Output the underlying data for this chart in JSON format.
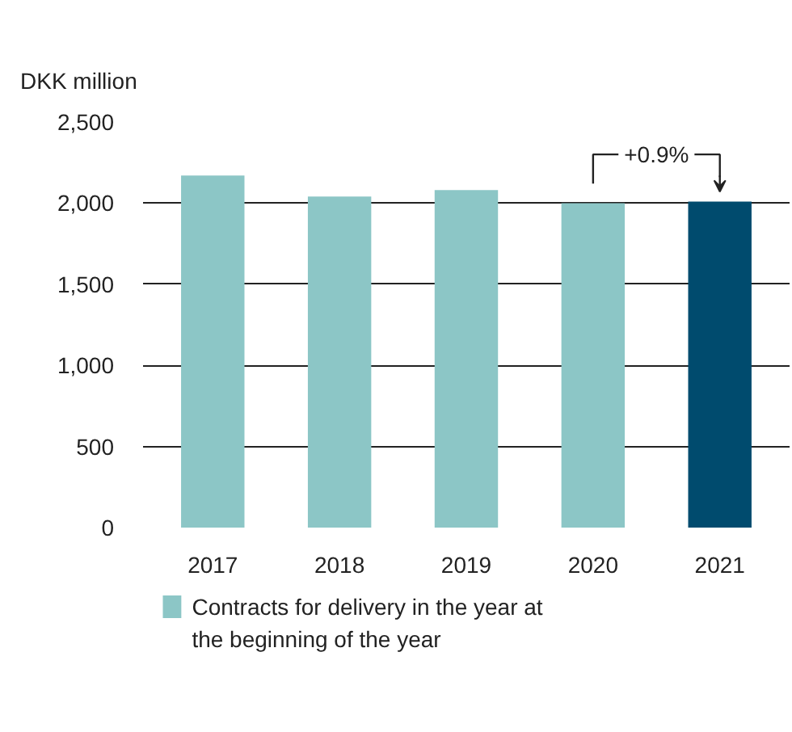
{
  "chart_data": {
    "type": "bar",
    "ylabel": "DKK million",
    "categories": [
      "2017",
      "2018",
      "2019",
      "2020",
      "2021"
    ],
    "series": [
      {
        "name": "Contracts for delivery in the year at the beginning of the year",
        "color": "#8cc6c6",
        "colors": [
          "#8cc6c6",
          "#8cc6c6",
          "#8cc6c6",
          "#8cc6c6",
          "#004b6e"
        ],
        "values": [
          2170,
          2040,
          2080,
          2000,
          2010
        ]
      }
    ],
    "ylim": [
      0,
      2500
    ],
    "yticks": [
      0,
      500,
      {
        "value": 1000,
        "label": "1,000"
      },
      {
        "value": 1500,
        "label": "1,500"
      },
      {
        "value": 2000,
        "label": "2,000"
      },
      {
        "value": 2500,
        "label": "2,500"
      }
    ],
    "grid": "y",
    "legend": "bottom left",
    "annotations": [
      "+0.9%"
    ]
  }
}
